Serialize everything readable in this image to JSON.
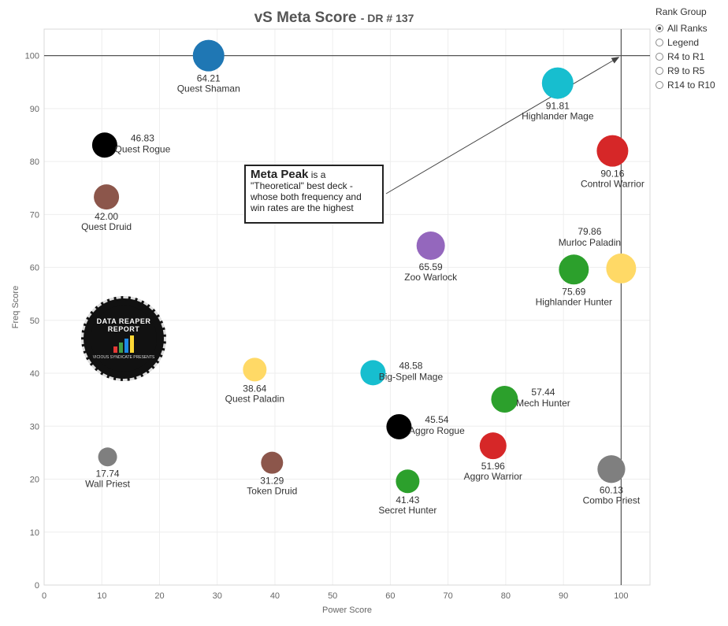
{
  "chart_data": {
    "type": "scatter",
    "title": "vS Meta Score",
    "subtitle": "- DR # 137",
    "xlabel": "Power Score",
    "ylabel": "Freq Score",
    "xlim": [
      0,
      105
    ],
    "ylim": [
      0,
      105
    ],
    "x_ticks": [
      0,
      10,
      20,
      30,
      40,
      50,
      60,
      70,
      80,
      90,
      100
    ],
    "y_ticks": [
      0,
      10,
      20,
      30,
      40,
      50,
      60,
      70,
      80,
      90,
      100
    ],
    "grid": true,
    "reference_lines": {
      "x": 100,
      "y": 100
    },
    "points": [
      {
        "name": "Quest Shaman",
        "score": "64.21",
        "x": 28.5,
        "y": 100.0,
        "size": 1.0,
        "color": "#1f77b4"
      },
      {
        "name": "Highlander Mage",
        "score": "91.81",
        "x": 89.0,
        "y": 94.8,
        "size": 1.0,
        "color": "#17becf"
      },
      {
        "name": "Control Warrior",
        "score": "90.16",
        "x": 98.5,
        "y": 82.0,
        "size": 1.0,
        "color": "#d62728"
      },
      {
        "name": "Quest Rogue",
        "score": "46.83",
        "x": 10.5,
        "y": 83.1,
        "size": 0.8,
        "color": "#000000"
      },
      {
        "name": "Quest Druid",
        "score": "42.00",
        "x": 10.8,
        "y": 73.3,
        "size": 0.8,
        "color": "#8c564b"
      },
      {
        "name": "Zoo Warlock",
        "score": "65.59",
        "x": 67.0,
        "y": 64.1,
        "size": 0.9,
        "color": "#9467bd"
      },
      {
        "name": "Murloc Paladin",
        "score": "79.86",
        "x": 100.0,
        "y": 59.8,
        "size": 0.95,
        "color": "#ffd966"
      },
      {
        "name": "Highlander Hunter",
        "score": "75.69",
        "x": 91.8,
        "y": 59.6,
        "size": 0.95,
        "color": "#2ca02c"
      },
      {
        "name": "Quest Paladin",
        "score": "38.64",
        "x": 36.5,
        "y": 40.7,
        "size": 0.75,
        "color": "#ffd966"
      },
      {
        "name": "Big-Spell Mage",
        "score": "48.58",
        "x": 57.0,
        "y": 40.1,
        "size": 0.8,
        "color": "#17becf"
      },
      {
        "name": "Mech Hunter",
        "score": "57.44",
        "x": 79.8,
        "y": 35.1,
        "size": 0.85,
        "color": "#2ca02c"
      },
      {
        "name": "Aggro Rogue",
        "score": "45.54",
        "x": 61.5,
        "y": 29.9,
        "size": 0.8,
        "color": "#000000"
      },
      {
        "name": "Aggro Warrior",
        "score": "51.96",
        "x": 77.8,
        "y": 26.3,
        "size": 0.85,
        "color": "#d62728"
      },
      {
        "name": "Wall Priest",
        "score": "17.74",
        "x": 11.0,
        "y": 24.2,
        "size": 0.6,
        "color": "#7f7f7f"
      },
      {
        "name": "Token Druid",
        "score": "31.29",
        "x": 39.5,
        "y": 23.1,
        "size": 0.7,
        "color": "#8c564b"
      },
      {
        "name": "Secret Hunter",
        "score": "41.43",
        "x": 63.0,
        "y": 19.6,
        "size": 0.75,
        "color": "#2ca02c"
      },
      {
        "name": "Combo Priest",
        "score": "60.13",
        "x": 98.3,
        "y": 21.9,
        "size": 0.88,
        "color": "#7f7f7f"
      }
    ]
  },
  "legend": {
    "title": "Rank Group",
    "options": [
      "All Ranks",
      "Legend",
      "R4 to R1",
      "R9 to R5",
      "R14 to R10"
    ],
    "selected": "All Ranks"
  },
  "annotation": {
    "bold": "Meta Peak",
    "line1": " is a",
    "line2": "\"Theoretical\" best deck -",
    "line3": "whose both frequency and",
    "line4": "win rates are the highest"
  },
  "logo": {
    "text": "DATA REAPER REPORT",
    "small": "VICIOUS SYNDICATE PRESENTS",
    "colors": [
      "#e53935",
      "#43a047",
      "#1e88e5",
      "#fdd835"
    ]
  }
}
